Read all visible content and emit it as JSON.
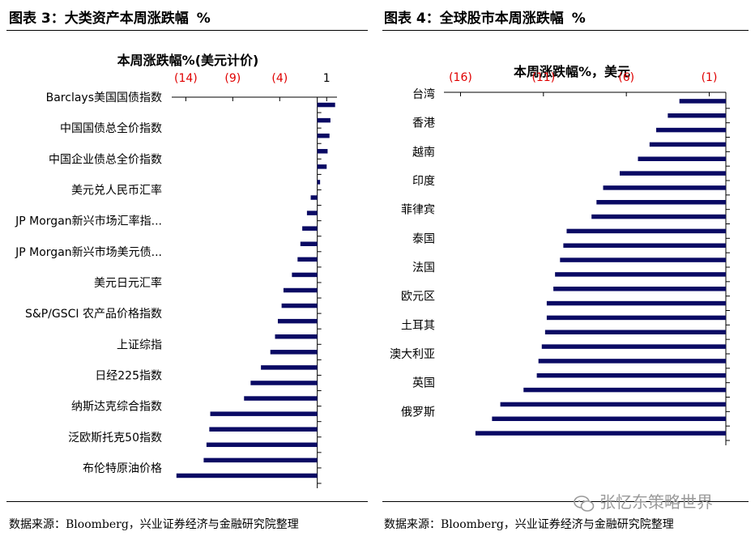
{
  "figure_left": {
    "title_label": "图表 3：",
    "title_main": "大类资产本周涨跌幅",
    "title_unit": "%",
    "source": "数据来源：Bloomberg，兴业证券经济与金融研究院整理"
  },
  "figure_right": {
    "title_label": "图表 4：",
    "title_main": "全球股市本周涨跌幅",
    "title_unit": "%",
    "source": "数据来源：Bloomberg，兴业证券经济与金融研究院整理"
  },
  "watermark": "张忆东策略世界",
  "colors": {
    "bar": "#0a0a64",
    "tick_label": "#e00000",
    "axis": "#000000"
  },
  "chart_data": [
    {
      "type": "bar",
      "orientation": "horizontal",
      "title": "本周涨跌幅%(美元计价)",
      "xlim": [
        -15.5,
        2.1
      ],
      "xticks": [
        -14,
        -9,
        -4,
        1
      ],
      "xtick_labels": [
        "(14)",
        "(9)",
        "(4)",
        "1"
      ],
      "categories": [
        "Barclays美国国债指数",
        "",
        "中国国债总全价指数",
        "",
        "中国企业债总全价指数",
        "",
        "美元兑人民币汇率",
        "",
        "JP Morgan新兴市场汇率指...",
        "",
        "JP Morgan新兴市场美元债...",
        "",
        "美元日元汇率",
        "",
        "S&P/GSCI 农产品价格指数",
        "",
        "上证综指",
        "",
        "日经225指数",
        "",
        "纳斯达克综合指数",
        "",
        "泛欧斯托克50指数",
        "",
        "布伦特原油价格"
      ],
      "values": [
        1.9,
        1.4,
        1.3,
        1.1,
        1.0,
        0.3,
        -0.7,
        -1.1,
        -1.6,
        -1.8,
        -2.1,
        -2.7,
        -3.6,
        -3.8,
        -4.2,
        -4.5,
        -5.0,
        -6.0,
        -7.1,
        -7.8,
        -11.4,
        -11.5,
        -11.8,
        -12.1,
        -15.0
      ]
    },
    {
      "type": "bar",
      "orientation": "horizontal",
      "title": "本周涨跌幅%，美元",
      "xlim": [
        -17.0,
        0.0
      ],
      "xticks": [
        -16,
        -11,
        -6,
        -1
      ],
      "xtick_labels": [
        "(16)",
        "(11)",
        "(6)",
        "(1)"
      ],
      "categories": [
        "台湾",
        "",
        "香港",
        "",
        "越南",
        "",
        "印度",
        "",
        "菲律宾",
        "",
        "泰国",
        "",
        "法国",
        "",
        "欧元区",
        "",
        "土耳其",
        "",
        "澳大利亚",
        "",
        "英国",
        "",
        "俄罗斯",
        ""
      ],
      "values": [
        -2.8,
        -3.5,
        -4.2,
        -4.6,
        -5.3,
        -6.4,
        -7.4,
        -7.8,
        -8.1,
        -9.6,
        -9.8,
        -10.0,
        -10.3,
        -10.4,
        -10.8,
        -10.8,
        -10.9,
        -11.1,
        -11.3,
        -11.4,
        -12.2,
        -13.6,
        -14.1,
        -15.1
      ]
    }
  ]
}
